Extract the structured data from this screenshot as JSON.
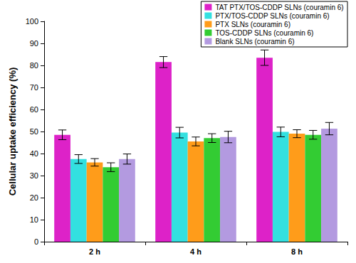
{
  "chart_data": {
    "type": "bar",
    "y_label": "Cellular uptake efficiency (%)",
    "categories": [
      "2 h",
      "4 h",
      "8 h"
    ],
    "series": [
      {
        "name": "TAT PTX/TOS-CDDP SLNs (couramin 6)",
        "color": "#dd22c8",
        "values": [
          48.5,
          81.5,
          83.5
        ],
        "errors": [
          2.2,
          2.5,
          3.5
        ]
      },
      {
        "name": "PTX/TOS-CDDP SLNs (couramin 6)",
        "color": "#33e0e0",
        "values": [
          37.5,
          49.5,
          49.8
        ],
        "errors": [
          2.0,
          2.4,
          2.2
        ]
      },
      {
        "name": "PTX SLNs (couramin 6)",
        "color": "#ff9c1a",
        "values": [
          36.0,
          45.5,
          49.0
        ],
        "errors": [
          1.7,
          2.0,
          1.8
        ]
      },
      {
        "name": "TOS-CDDP SLNs (couramin 6)",
        "color": "#33cc33",
        "values": [
          33.8,
          47.0,
          48.5
        ],
        "errors": [
          2.0,
          2.0,
          2.0
        ]
      },
      {
        "name": "Blank SLNs (couramin 6)",
        "color": "#b39ae0",
        "values": [
          37.5,
          47.5,
          51.3
        ],
        "errors": [
          2.3,
          2.6,
          2.8
        ]
      }
    ],
    "ylim": [
      0,
      100
    ],
    "yticks": [
      0,
      10,
      20,
      30,
      40,
      50,
      60,
      70,
      80,
      90,
      100
    ],
    "grid": false,
    "legend": "top-right"
  }
}
